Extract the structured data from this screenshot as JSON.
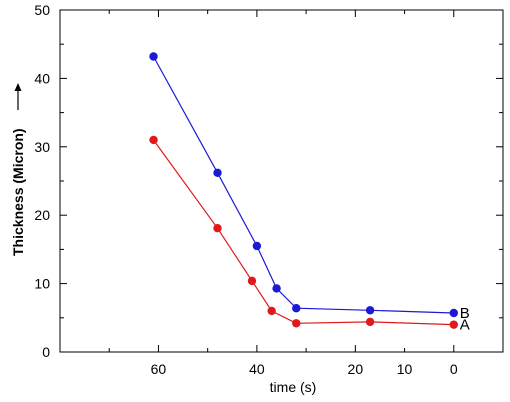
{
  "chart_data": {
    "type": "line",
    "xlabel": "time (s)",
    "ylabel": "Thickness (Micron)",
    "xlim": [
      -10,
      80
    ],
    "x_reversed": true,
    "ylim": [
      0,
      50
    ],
    "x_ticks": [
      60,
      40,
      20,
      10,
      0
    ],
    "y_ticks": [
      0,
      10,
      20,
      30,
      40,
      50
    ],
    "grid": false,
    "series": [
      {
        "name": "B",
        "color": "#1a1ad4",
        "x": [
          61,
          48,
          40,
          36,
          32,
          17,
          0
        ],
        "y": [
          43.2,
          26.2,
          15.5,
          9.3,
          6.4,
          6.1,
          5.7
        ]
      },
      {
        "name": "A",
        "color": "#e01a1a",
        "x": [
          61,
          48,
          41,
          37,
          32,
          17,
          0
        ],
        "y": [
          31.0,
          18.1,
          10.4,
          6.0,
          4.2,
          4.4,
          4.0
        ]
      }
    ]
  }
}
